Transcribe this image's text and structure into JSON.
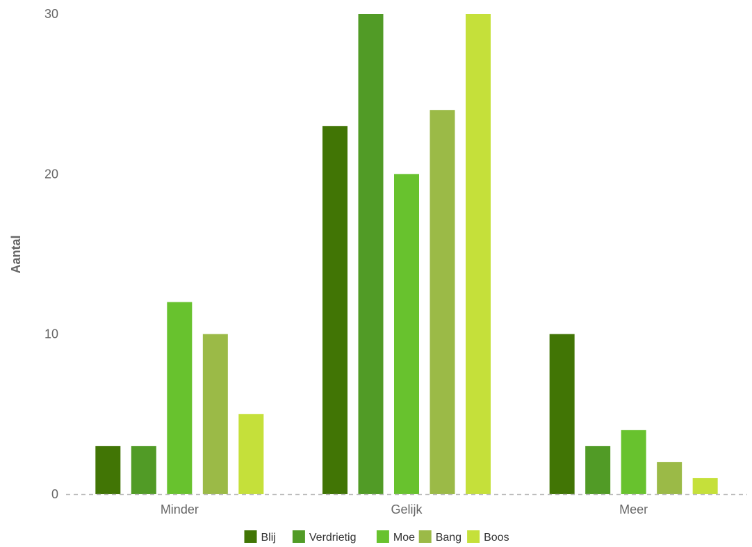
{
  "chart_data": {
    "type": "bar",
    "title": "",
    "xlabel": "",
    "ylabel": "Aantal",
    "ylim": [
      0,
      30
    ],
    "yticks": [
      0,
      10,
      20,
      30
    ],
    "grid": false,
    "legend_position": "bottom",
    "categories": [
      "Minder",
      "Gelijk",
      "Meer"
    ],
    "series": [
      {
        "name": "Blij",
        "color": "#417505",
        "values": [
          3,
          23,
          10
        ]
      },
      {
        "name": "Verdrietig",
        "color": "#519b26",
        "values": [
          3,
          30,
          3
        ]
      },
      {
        "name": "Moe",
        "color": "#68c22e",
        "values": [
          12,
          20,
          4
        ]
      },
      {
        "name": "Bang",
        "color": "#9bba47",
        "values": [
          10,
          24,
          2
        ]
      },
      {
        "name": "Boos",
        "color": "#c5e03a",
        "values": [
          5,
          30,
          1
        ]
      }
    ]
  }
}
